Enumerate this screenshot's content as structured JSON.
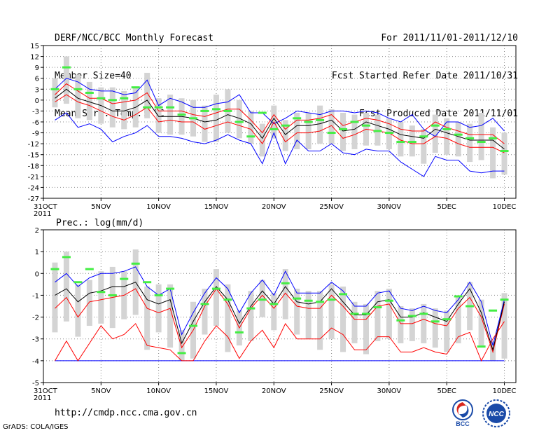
{
  "header": {
    "left": [
      "DERF/NCC/BCC Monthly Forecast",
      "Member Size=40",
      "Mean Surf. Temp.: °C"
    ],
    "right": [
      "For 2011/11/01-2011/12/10",
      "Fcst Started Refer Date 2011/10/31",
      "Fcst Produced Date 2011/11/01"
    ]
  },
  "footer": {
    "url": "http://cmdp.ncc.cma.gov.cn",
    "credit": "GrADS: COLA/IGES"
  },
  "logos": {
    "bcc": "BCC",
    "ncc": "NCC"
  },
  "colors": {
    "mean": "#000000",
    "spread": "#ff0000",
    "extreme": "#0000ff",
    "box": "#d4d4d4",
    "obs": "#44ee44",
    "grid": "#888888"
  },
  "chart_data": [
    {
      "type": "line",
      "title": "Mean Surf. Temp.: °C",
      "xlabel": "",
      "ylabel": "",
      "x_ticks": [
        {
          "day": 0,
          "label": "31OCT",
          "sub": "2011"
        },
        {
          "day": 5,
          "label": "5NOV"
        },
        {
          "day": 10,
          "label": "10NOV"
        },
        {
          "day": 15,
          "label": "15NOV"
        },
        {
          "day": 20,
          "label": "20NOV"
        },
        {
          "day": 25,
          "label": "25NOV"
        },
        {
          "day": 30,
          "label": "30NOV"
        },
        {
          "day": 35,
          "label": "5DEC"
        },
        {
          "day": 40,
          "label": "10DEC"
        }
      ],
      "xlim": [
        0,
        41
      ],
      "ylim": [
        -27,
        15
      ],
      "y_ticks": [
        15,
        12,
        9,
        6,
        3,
        0,
        -3,
        -6,
        -9,
        -12,
        -15,
        -18,
        -21,
        -24,
        -27
      ],
      "series": [
        {
          "name": "ensemble max",
          "color": "#0000ff",
          "values": [
            -5.5,
            -3.5,
            -7.5,
            -6.5,
            -8,
            -11.5,
            -10,
            -9,
            -7,
            -10,
            -10,
            -10.5,
            -11.5,
            -12,
            -11,
            -9.5,
            -11,
            -12,
            -17.5,
            -9,
            -17.5,
            -11,
            -14,
            -14,
            -12,
            -14.5,
            -15,
            -13.5,
            -14,
            -14,
            -17,
            -19,
            -21,
            -15.5,
            -16.5,
            -16.5,
            -19.5,
            -20,
            -19.5,
            -19.5
          ]
        },
        {
          "name": "ensemble min",
          "color": "#0000ff",
          "values": [
            3,
            6,
            5,
            3,
            2.5,
            2.5,
            1.5,
            2,
            5.5,
            -1.5,
            0.5,
            -0.5,
            -2,
            -2,
            -1,
            -0.5,
            1.5,
            -3.5,
            -3.5,
            -6.5,
            -5,
            -3,
            -3.5,
            -4,
            -3,
            -3,
            -3.5,
            -3,
            -3.5,
            -5,
            -6,
            -4,
            -8,
            -10,
            -6,
            -6,
            -7.5,
            -7,
            -5,
            -8.5
          ]
        },
        {
          "name": "mean - 1 sd",
          "color": "#ff0000",
          "values": [
            -0.5,
            1.5,
            -0.5,
            -1.5,
            -3,
            -4.5,
            -5.5,
            -4,
            -2,
            -6,
            -5.5,
            -6,
            -6,
            -8,
            -7,
            -6,
            -7,
            -8,
            -12,
            -6,
            -11.5,
            -9,
            -9,
            -8.5,
            -7,
            -10.5,
            -9.5,
            -8,
            -8.5,
            -9,
            -11,
            -12,
            -12,
            -10,
            -10.5,
            -12,
            -13,
            -13,
            -13,
            -14.5
          ]
        },
        {
          "name": "mean + 1 sd",
          "color": "#ff0000",
          "values": [
            1.5,
            4.5,
            2.5,
            0.5,
            0.5,
            -1,
            -0.5,
            0,
            2,
            -3,
            -3,
            -3,
            -4,
            -4.5,
            -3.5,
            -2.5,
            -2.5,
            -5.5,
            -9,
            -4,
            -8,
            -5.5,
            -5.5,
            -5,
            -4,
            -7,
            -6,
            -5,
            -5.5,
            -6.5,
            -8,
            -8.5,
            -8.5,
            -6,
            -7.5,
            -8.5,
            -9.5,
            -9.5,
            -9.5,
            -12
          ]
        },
        {
          "name": "ensemble mean",
          "color": "#000000",
          "values": [
            0.5,
            3,
            0.5,
            -0.5,
            -1.5,
            -3,
            -3,
            -2,
            0,
            -4.5,
            -4.5,
            -4.5,
            -5,
            -6,
            -5.5,
            -4,
            -5,
            -6.5,
            -10.5,
            -5,
            -9.5,
            -7,
            -7,
            -6.5,
            -5.5,
            -8.5,
            -8,
            -6,
            -7,
            -8,
            -9.5,
            -10,
            -10.5,
            -8,
            -9,
            -10,
            -11,
            -11,
            -11,
            -13.5
          ]
        },
        {
          "name": "observation",
          "color": "#44ee44",
          "values": [
            3,
            9,
            3,
            2,
            0.5,
            0,
            0.5,
            3.5,
            -2,
            -2,
            -2,
            -4,
            -5,
            -3,
            -2.5,
            -3,
            -6,
            -10,
            -3.5,
            -8,
            -7,
            -5,
            -6,
            -5.5,
            -9,
            -8,
            -6,
            -7,
            -8.5,
            -9,
            -11.5,
            -11.5,
            -10,
            -7,
            -8,
            -9.5,
            -10.5,
            -11.5,
            -10.5,
            -14
          ]
        },
        {
          "name": "spread box top",
          "color": "#d4d4d4",
          "values": [
            6,
            12,
            7,
            5,
            3.5,
            3.5,
            2.5,
            3.5,
            7.5,
            0.5,
            1.5,
            0.5,
            0,
            -1.5,
            1.5,
            3,
            0,
            -3,
            -6.5,
            -1.5,
            -5.5,
            -3.5,
            -3.5,
            -1.5,
            -2.5,
            -3.5,
            -4,
            -3.5,
            -4,
            -5,
            -6,
            -7,
            -8,
            -4,
            -5,
            -6,
            -6.5,
            -3.5,
            -7.5,
            -9
          ]
        },
        {
          "name": "spread box bottom",
          "color": "#d4d4d4",
          "values": [
            -2,
            -1,
            -5,
            -5.5,
            -6.5,
            -7.5,
            -8,
            -7.5,
            -5,
            -9,
            -9.5,
            -9.5,
            -10,
            -11.5,
            -11.5,
            -9,
            -10.5,
            -12,
            -15.5,
            -10.5,
            -14,
            -13.5,
            -13.5,
            -12,
            -12,
            -14,
            -13.5,
            -12.5,
            -12.5,
            -13.5,
            -15.5,
            -15.5,
            -17.5,
            -14.5,
            -15,
            -15.5,
            -17,
            -16.5,
            -21.5,
            -20.5
          ]
        }
      ]
    },
    {
      "type": "line",
      "title": "Prec.: log(mm/d)",
      "xlabel": "",
      "ylabel": "",
      "x_ticks": [
        {
          "day": 0,
          "label": "31OCT",
          "sub": "2011"
        },
        {
          "day": 5,
          "label": "5NOV"
        },
        {
          "day": 10,
          "label": "10NOV"
        },
        {
          "day": 15,
          "label": "15NOV"
        },
        {
          "day": 20,
          "label": "20NOV"
        },
        {
          "day": 25,
          "label": "25NOV"
        },
        {
          "day": 30,
          "label": "30NOV"
        },
        {
          "day": 35,
          "label": "5DEC"
        },
        {
          "day": 40,
          "label": "10DEC"
        }
      ],
      "xlim": [
        0,
        41
      ],
      "ylim": [
        -5,
        2
      ],
      "y_ticks": [
        2,
        1,
        0,
        -1,
        -2,
        -3,
        -4,
        -5
      ],
      "series": [
        {
          "name": "ensemble max",
          "color": "#0000ff",
          "values": [
            -0.4,
            0,
            -0.6,
            -0.2,
            0,
            0,
            0.1,
            0.3,
            -0.6,
            -1,
            -0.7,
            -2.8,
            -1.8,
            -0.9,
            -0.2,
            -0.7,
            -1.8,
            -0.9,
            -0.3,
            -1,
            0.1,
            -0.9,
            -0.9,
            -0.9,
            -0.4,
            -0.8,
            -1.5,
            -1.5,
            -0.9,
            -0.8,
            -1.6,
            -1.7,
            -1.5,
            -1.7,
            -1.8,
            -1.2,
            -0.4,
            -1.3,
            -3.3,
            -1.2
          ]
        },
        {
          "name": "ensemble min",
          "color": "#0000ff",
          "values": [
            -4,
            -4,
            -4,
            -4,
            -4,
            -4,
            -4,
            -4,
            -4,
            -4,
            -4,
            -4,
            -4,
            -4,
            -4,
            -4,
            -4,
            -4,
            -4,
            -4,
            -4,
            -4,
            -4,
            -4,
            -4,
            -4,
            -4,
            -4,
            -4,
            -4,
            -4,
            -4,
            -4,
            -4,
            -4,
            -4,
            -4,
            -4,
            -4,
            -4
          ]
        },
        {
          "name": "mean - 1 sd",
          "color": "#ff0000",
          "values": [
            -4,
            -3.1,
            -4,
            -3.2,
            -2.4,
            -3,
            -2.8,
            -2.3,
            -3.3,
            -3.4,
            -3.5,
            -4,
            -4,
            -3.1,
            -2.4,
            -2.9,
            -3.9,
            -3.1,
            -2.6,
            -3.4,
            -2.3,
            -3,
            -3,
            -3,
            -2.5,
            -2.8,
            -3.5,
            -3.5,
            -2.9,
            -2.9,
            -3.6,
            -3.6,
            -3.4,
            -3.6,
            -3.7,
            -2.9,
            -2.7,
            -4,
            -3,
            -2.2
          ]
        },
        {
          "name": "mean + 1 sd",
          "color": "#ff0000",
          "values": [
            -1.6,
            -1.1,
            -2,
            -1.3,
            -1.2,
            -1.1,
            -1,
            -0.7,
            -1.6,
            -1.8,
            -1.6,
            -3.4,
            -2.6,
            -1.5,
            -0.7,
            -1.4,
            -2.5,
            -1.6,
            -1,
            -1.6,
            -0.9,
            -1.5,
            -1.6,
            -1.6,
            -1,
            -1.5,
            -2.1,
            -2.1,
            -1.5,
            -1.4,
            -2.3,
            -2.3,
            -2.1,
            -2.3,
            -2.4,
            -1.6,
            -1.1,
            -2,
            -3.6,
            -1.4
          ]
        },
        {
          "name": "ensemble mean",
          "color": "#000000",
          "values": [
            -1,
            -0.7,
            -1.3,
            -0.9,
            -0.8,
            -0.6,
            -0.6,
            -0.4,
            -1.2,
            -1.4,
            -1.2,
            -3.2,
            -2.2,
            -1.3,
            -0.6,
            -1.2,
            -2.3,
            -1.5,
            -0.8,
            -1.4,
            -0.6,
            -1.3,
            -1.4,
            -1.3,
            -0.7,
            -1.3,
            -1.9,
            -1.9,
            -1.3,
            -1.2,
            -2,
            -2,
            -1.8,
            -2,
            -2.2,
            -1.4,
            -0.7,
            -1.8,
            -3.5,
            -1.3
          ]
        },
        {
          "name": "observation",
          "color": "#44ee44",
          "values": [
            0.2,
            0.75,
            -0.4,
            0.2,
            -0.85,
            -1,
            -0.25,
            0.45,
            -0.4,
            -1,
            -0.7,
            -3.65,
            -2.4,
            -1.4,
            -0.7,
            -1.2,
            -2.7,
            -1.6,
            -1.2,
            -1.4,
            -0.45,
            -1.15,
            -1.25,
            -1.3,
            -1.2,
            -0.95,
            -1.85,
            -1.85,
            -1.55,
            -1.25,
            -2.15,
            -1.95,
            -1.85,
            -2.2,
            -2.1,
            -1.05,
            -1.5,
            -3.35,
            -1.7,
            -1.2
          ]
        },
        {
          "name": "spread box top",
          "color": "#d4d4d4",
          "values": [
            0.5,
            1,
            -0.5,
            -0.3,
            0.1,
            0.3,
            0.1,
            1.1,
            -0.6,
            -0.5,
            -0.5,
            -2.6,
            -1.3,
            -0.7,
            0.2,
            -0.5,
            -1.7,
            -0.8,
            -0.3,
            -0.9,
            0.2,
            -0.7,
            -0.8,
            -0.8,
            -0.5,
            -0.6,
            -1.3,
            -1.4,
            -0.8,
            -0.7,
            -1.5,
            -1.6,
            -1.4,
            -1.6,
            -1.7,
            -1,
            -0.4,
            -1.2,
            -3.1,
            -0.9
          ]
        },
        {
          "name": "spread box bottom",
          "color": "#d4d4d4",
          "values": [
            -2.7,
            -2.2,
            -2.9,
            -2.4,
            -2.3,
            -2.5,
            -2.1,
            -1.9,
            -3.5,
            -2.7,
            -3.4,
            -4,
            -3.9,
            -2.8,
            -2.4,
            -3.6,
            -3.3,
            -3.1,
            -2,
            -2.6,
            -2.1,
            -2.8,
            -3,
            -3.5,
            -3,
            -3.6,
            -3.2,
            -3.7,
            -3.1,
            -3,
            -3.2,
            -3.1,
            -3.2,
            -3.4,
            -3.6,
            -3.2,
            -2.6,
            -3.3,
            -4,
            -3.9
          ]
        }
      ]
    }
  ]
}
